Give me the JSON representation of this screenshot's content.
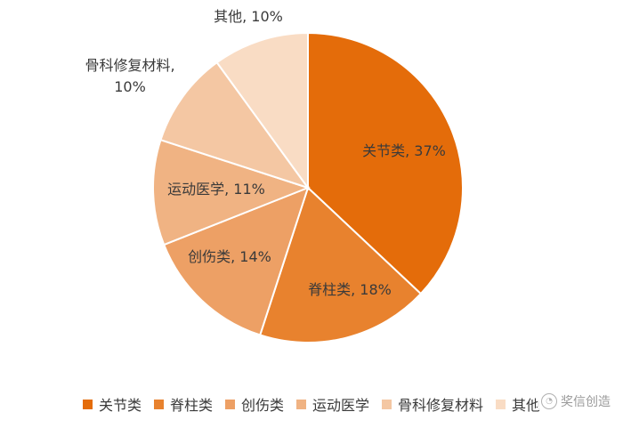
{
  "chart_data": {
    "type": "pie",
    "title": "",
    "slices": [
      {
        "name": "关节类",
        "value": 37,
        "label": "关节类, 37%",
        "color": "#E46C0A"
      },
      {
        "name": "脊柱类",
        "value": 18,
        "label": "脊柱类, 18%",
        "color": "#E8822E"
      },
      {
        "name": "创伤类",
        "value": 14,
        "label": "创伤类, 14%",
        "color": "#EDA065"
      },
      {
        "name": "运动医学",
        "value": 11,
        "label": "运动医学, 11%",
        "color": "#F0B383"
      },
      {
        "name": "骨科修复材料",
        "value": 10,
        "label_lines": [
          "骨科修复材料,",
          "10%"
        ],
        "color": "#F4C7A3"
      },
      {
        "name": "其他",
        "value": 10,
        "label": "其他, 10%",
        "color": "#F9DCC4"
      }
    ],
    "legend": {
      "position": "bottom",
      "entries": [
        "关节类",
        "脊柱类",
        "创伤类",
        "运动医学",
        "骨科修复材料",
        "其他"
      ]
    }
  },
  "watermark": {
    "text": "奖信创造",
    "icon": "wechat-icon"
  }
}
